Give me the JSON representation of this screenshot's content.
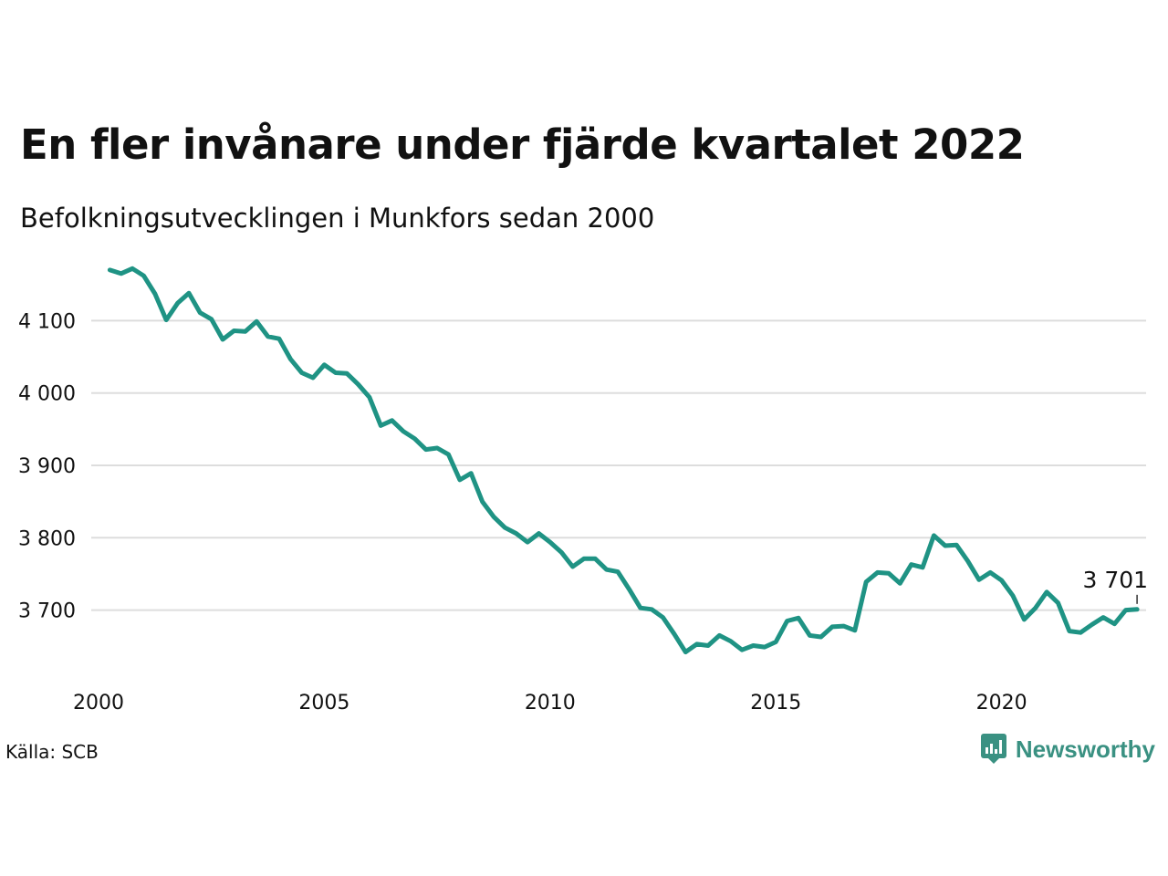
{
  "header": {
    "title": "En fler invånare under fjärde kvartalet 2022",
    "subtitle": "Befolkningsutvecklingen i Munkfors sedan 2000"
  },
  "footer": {
    "source": "Källa: SCB",
    "brand": "Newsworthy",
    "brand_icon": "newsworthy-logo-icon",
    "brand_color": "#3a9182"
  },
  "chart_data": {
    "type": "line",
    "title": "En fler invånare under fjärde kvartalet 2022",
    "subtitle": "Befolkningsutvecklingen i Munkfors sedan 2000",
    "xlabel": "",
    "ylabel": "",
    "x_ticks": [
      {
        "value": 2000,
        "label": "2000"
      },
      {
        "value": 2005,
        "label": "2005"
      },
      {
        "value": 2010,
        "label": "2010"
      },
      {
        "value": 2015,
        "label": "2015"
      },
      {
        "value": 2020,
        "label": "2020"
      }
    ],
    "y_ticks": [
      {
        "value": 3700,
        "label": "3 700"
      },
      {
        "value": 3800,
        "label": "3 800"
      },
      {
        "value": 3900,
        "label": "3 900"
      },
      {
        "value": 4000,
        "label": "4 000"
      },
      {
        "value": 4100,
        "label": "4 100"
      }
    ],
    "xlim": [
      2000,
      2023.2
    ],
    "ylim": [
      3610,
      4190
    ],
    "grid": true,
    "line_color": "#1f9384",
    "end_label": "3 701",
    "series": [
      {
        "x_start": 2000.25,
        "x_step": 0.25,
        "values": [
          4170,
          4165,
          4172,
          4162,
          4137,
          4101,
          4124,
          4138,
          4111,
          4102,
          4074,
          4086,
          4085,
          4099,
          4078,
          4075,
          4047,
          4028,
          4021,
          4039,
          4028,
          4027,
          4012,
          3994,
          3955,
          3962,
          3947,
          3937,
          3922,
          3924,
          3915,
          3880,
          3889,
          3850,
          3829,
          3814,
          3806,
          3794,
          3806,
          3794,
          3780,
          3760,
          3771,
          3771,
          3756,
          3753,
          3729,
          3703,
          3701,
          3690,
          3667,
          3642,
          3653,
          3651,
          3665,
          3657,
          3645,
          3651,
          3649,
          3656,
          3685,
          3689,
          3665,
          3663,
          3677,
          3678,
          3672,
          3739,
          3752,
          3751,
          3737,
          3763,
          3759,
          3803,
          3789,
          3790,
          3768,
          3742,
          3752,
          3741,
          3720,
          3687,
          3703,
          3725,
          3710,
          3671,
          3669,
          3680,
          3690,
          3681,
          3700,
          3701
        ]
      }
    ]
  }
}
